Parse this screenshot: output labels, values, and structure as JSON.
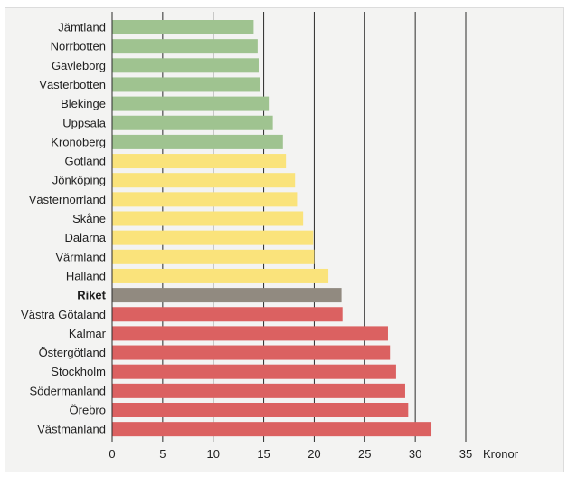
{
  "chart_data": {
    "type": "bar",
    "orientation": "horizontal",
    "categories": [
      "Jämtland",
      "Norrbotten",
      "Gävleborg",
      "Västerbotten",
      "Blekinge",
      "Uppsala",
      "Kronoberg",
      "Gotland",
      "Jönköping",
      "Västernorrland",
      "Skåne",
      "Dalarna",
      "Värmland",
      "Halland",
      "Riket",
      "Västra Götaland",
      "Kalmar",
      "Östergötland",
      "Stockholm",
      "Södermanland",
      "Örebro",
      "Västmanland"
    ],
    "values": [
      14.0,
      14.4,
      14.5,
      14.6,
      15.5,
      15.9,
      16.9,
      17.2,
      18.1,
      18.3,
      18.9,
      19.9,
      20.0,
      21.4,
      22.7,
      22.8,
      27.3,
      27.5,
      28.1,
      29.0,
      29.3,
      31.6
    ],
    "groups": [
      "low",
      "low",
      "low",
      "low",
      "low",
      "low",
      "low",
      "mid",
      "mid",
      "mid",
      "mid",
      "mid",
      "mid",
      "mid",
      "national",
      "high",
      "high",
      "high",
      "high",
      "high",
      "high",
      "high"
    ],
    "colors": {
      "low": "#9fc390",
      "mid": "#fae37b",
      "national": "#918a80",
      "high": "#db6161"
    },
    "highlight": "Riket",
    "xlim": [
      0,
      35
    ],
    "xticks": [
      0,
      5,
      10,
      15,
      20,
      25,
      30,
      35
    ],
    "xlabel": "Kronor",
    "grid": "vertical"
  }
}
